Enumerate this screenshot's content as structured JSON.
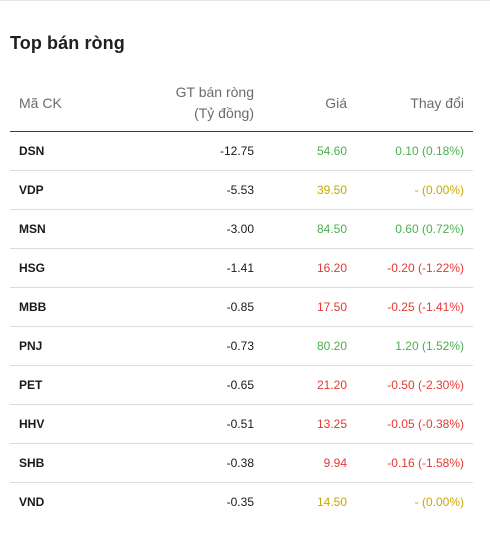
{
  "panel": {
    "title": "Top bán ròng"
  },
  "table": {
    "headers": {
      "symbol": "Mã CK",
      "net_value_line1": "GT bán ròng",
      "net_value_line2": "(Tỷ đồng)",
      "price": "Giá",
      "change": "Thay đổi"
    },
    "status_colors": {
      "up": "#4caf50",
      "down": "#e53935",
      "flat": "#c9a800"
    },
    "rows": [
      {
        "symbol": "DSN",
        "net_value": "-12.75",
        "price": "54.60",
        "change": "0.10 (0.18%)",
        "trend": "up"
      },
      {
        "symbol": "VDP",
        "net_value": "-5.53",
        "price": "39.50",
        "change": "- (0.00%)",
        "trend": "flat"
      },
      {
        "symbol": "MSN",
        "net_value": "-3.00",
        "price": "84.50",
        "change": "0.60 (0.72%)",
        "trend": "up"
      },
      {
        "symbol": "HSG",
        "net_value": "-1.41",
        "price": "16.20",
        "change": "-0.20 (-1.22%)",
        "trend": "down"
      },
      {
        "symbol": "MBB",
        "net_value": "-0.85",
        "price": "17.50",
        "change": "-0.25 (-1.41%)",
        "trend": "down"
      },
      {
        "symbol": "PNJ",
        "net_value": "-0.73",
        "price": "80.20",
        "change": "1.20 (1.52%)",
        "trend": "up"
      },
      {
        "symbol": "PET",
        "net_value": "-0.65",
        "price": "21.20",
        "change": "-0.50 (-2.30%)",
        "trend": "down"
      },
      {
        "symbol": "HHV",
        "net_value": "-0.51",
        "price": "13.25",
        "change": "-0.05 (-0.38%)",
        "trend": "down"
      },
      {
        "symbol": "SHB",
        "net_value": "-0.38",
        "price": "9.94",
        "change": "-0.16 (-1.58%)",
        "trend": "down"
      },
      {
        "symbol": "VND",
        "net_value": "-0.35",
        "price": "14.50",
        "change": "- (0.00%)",
        "trend": "flat"
      }
    ]
  }
}
